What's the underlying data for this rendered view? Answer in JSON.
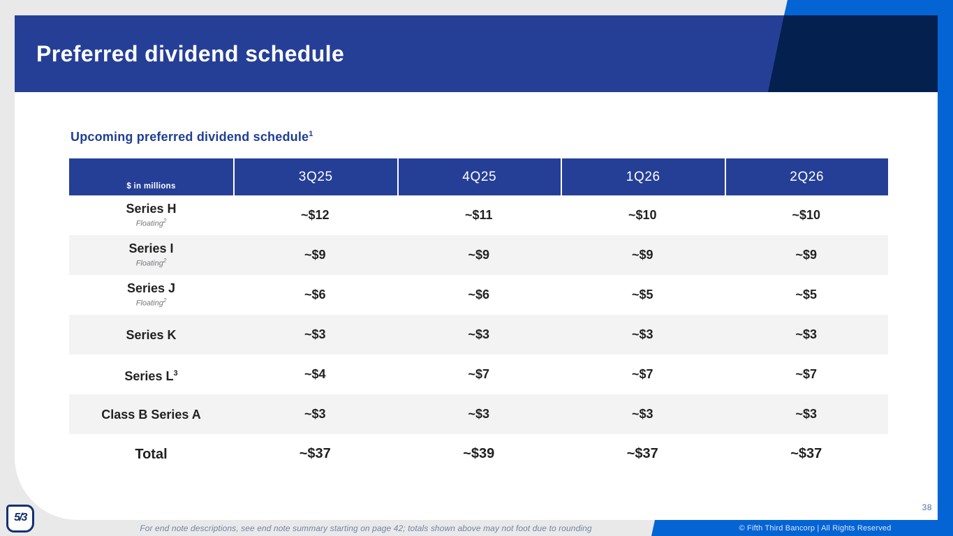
{
  "slide": {
    "title": "Preferred dividend schedule",
    "page_number": "38"
  },
  "subtitle": {
    "text": "Upcoming preferred dividend schedule",
    "superscript": "1"
  },
  "table": {
    "unit_label": "$ in millions",
    "columns": [
      "3Q25",
      "4Q25",
      "1Q26",
      "2Q26"
    ],
    "rows": [
      {
        "label": "Series H",
        "label_sup": "",
        "sub": "Floating",
        "sub_sup": "2",
        "values": [
          "~$12",
          "~$11",
          "~$10",
          "~$10"
        ]
      },
      {
        "label": "Series I",
        "label_sup": "",
        "sub": "Floating",
        "sub_sup": "2",
        "values": [
          "~$9",
          "~$9",
          "~$9",
          "~$9"
        ]
      },
      {
        "label": "Series J",
        "label_sup": "",
        "sub": "Floating",
        "sub_sup": "2",
        "values": [
          "~$6",
          "~$6",
          "~$5",
          "~$5"
        ]
      },
      {
        "label": "Series K",
        "label_sup": "",
        "sub": "",
        "sub_sup": "",
        "values": [
          "~$3",
          "~$3",
          "~$3",
          "~$3"
        ]
      },
      {
        "label": "Series L",
        "label_sup": "3",
        "sub": "",
        "sub_sup": "",
        "values": [
          "~$4",
          "~$7",
          "~$7",
          "~$7"
        ]
      },
      {
        "label": "Class B Series A",
        "label_sup": "",
        "sub": "",
        "sub_sup": "",
        "values": [
          "~$3",
          "~$3",
          "~$3",
          "~$3"
        ]
      }
    ],
    "total": {
      "label": "Total",
      "values": [
        "~$37",
        "~$39",
        "~$37",
        "~$37"
      ]
    }
  },
  "footer": {
    "footnote": "For end note descriptions, see end note summary starting on page 42; totals shown above may not foot due to rounding",
    "copyright": "© Fifth Third Bancorp | All Rights Reserved",
    "logo_text": "5/3"
  },
  "colors": {
    "header_blue": "#253F97",
    "navy_accent": "#03204F",
    "bright_blue": "#0564D4",
    "page_background": "#E9E9EA",
    "row_alt": "#F3F3F4",
    "subtitle_blue": "#1F3E95",
    "body_text": "#232020",
    "floating_grey": "#75767A",
    "footnote_grey_blue": "#6F85A6"
  },
  "chart_data": {
    "type": "table",
    "title": "Upcoming preferred dividend schedule ($ in millions)",
    "categories": [
      "3Q25",
      "4Q25",
      "1Q26",
      "2Q26"
    ],
    "series": [
      {
        "name": "Series H (Floating)",
        "values": [
          12,
          11,
          10,
          10
        ]
      },
      {
        "name": "Series I (Floating)",
        "values": [
          9,
          9,
          9,
          9
        ]
      },
      {
        "name": "Series J (Floating)",
        "values": [
          6,
          6,
          5,
          5
        ]
      },
      {
        "name": "Series K",
        "values": [
          3,
          3,
          3,
          3
        ]
      },
      {
        "name": "Series L",
        "values": [
          4,
          7,
          7,
          7
        ]
      },
      {
        "name": "Class B Series A",
        "values": [
          3,
          3,
          3,
          3
        ]
      },
      {
        "name": "Total",
        "values": [
          37,
          39,
          37,
          37
        ]
      }
    ]
  }
}
